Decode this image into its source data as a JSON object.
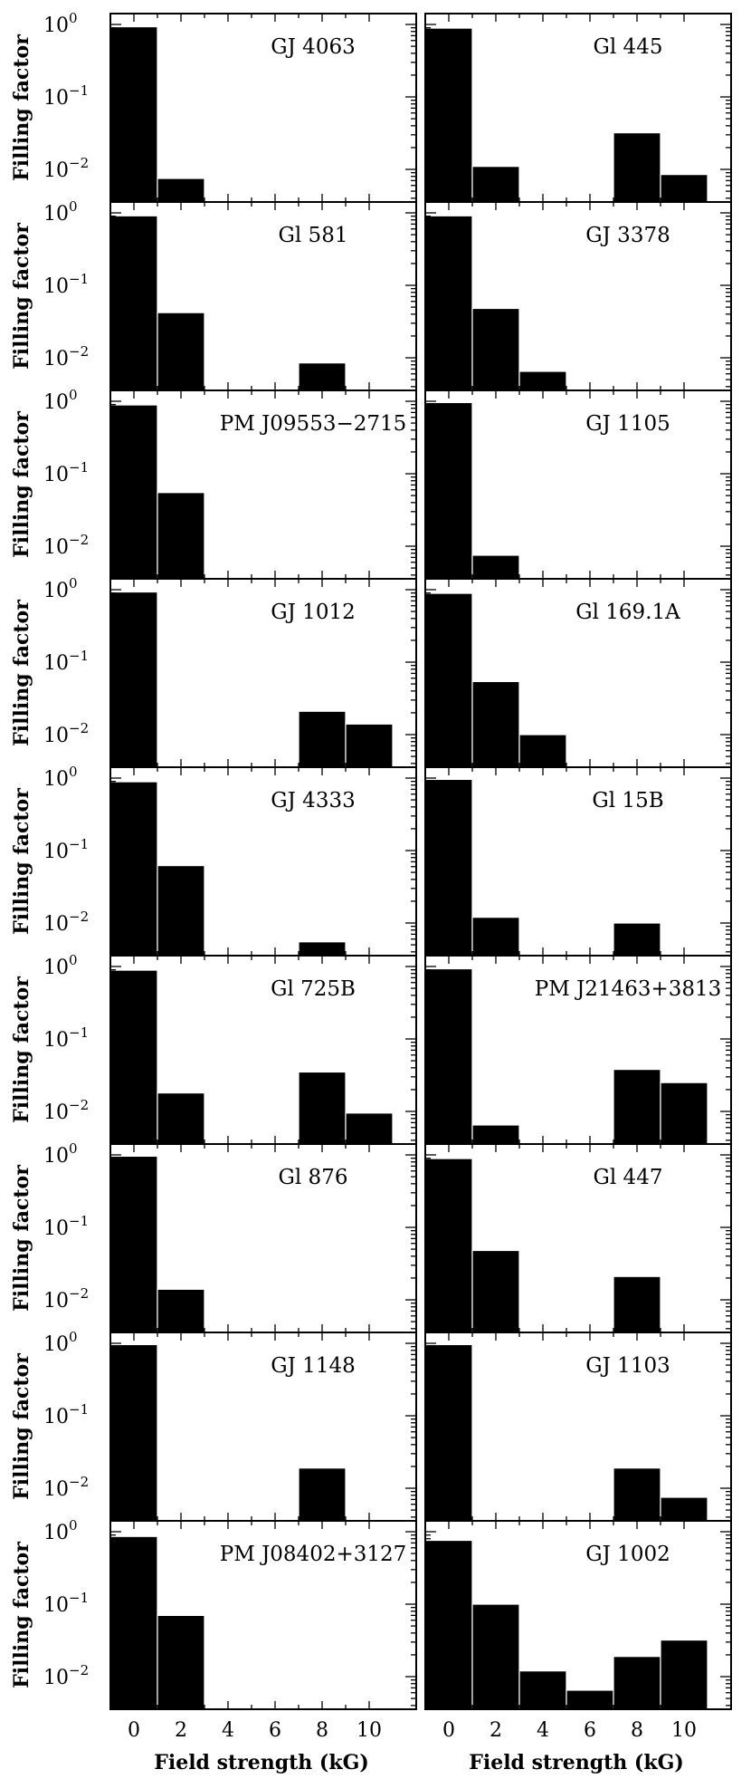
{
  "figure": {
    "ylabel": "Filling factor",
    "xlabel": "Field strength (kG)"
  },
  "chart_data": {
    "type": "bar",
    "layout": "grid of 9 rows x 2 columns of histograms",
    "x_tick_labels": [
      "0",
      "2",
      "4",
      "6",
      "8",
      "10"
    ],
    "y_tick_labels": [
      {
        "base": "10",
        "exp": "0"
      },
      {
        "base": "10",
        "exp": "−1"
      },
      {
        "base": "10",
        "exp": "−2"
      }
    ],
    "ylog": true,
    "bin_centers": [
      0,
      2,
      4,
      6,
      8,
      10
    ],
    "panels": [
      {
        "name": "GJ 4063",
        "values": [
          0.93,
          0.0075,
          null,
          null,
          null,
          null
        ]
      },
      {
        "name": "Gl 445",
        "values": [
          0.89,
          0.011,
          null,
          null,
          0.032,
          0.0085
        ]
      },
      {
        "name": "Gl 581",
        "values": [
          0.91,
          0.042,
          null,
          null,
          0.0085,
          null
        ]
      },
      {
        "name": "GJ 3378",
        "values": [
          0.91,
          0.048,
          0.0065,
          null,
          null,
          null
        ]
      },
      {
        "name": "PM J09553−2715",
        "values": [
          0.89,
          0.055,
          null,
          null,
          null,
          null
        ]
      },
      {
        "name": "GJ 1105",
        "values": [
          0.96,
          0.0075,
          null,
          null,
          null,
          null
        ]
      },
      {
        "name": "GJ 1012",
        "values": [
          0.93,
          null,
          null,
          null,
          0.021,
          0.014
        ]
      },
      {
        "name": "Gl 169.1A",
        "values": [
          0.89,
          0.054,
          0.01,
          null,
          null,
          null
        ]
      },
      {
        "name": "GJ 4333",
        "values": [
          0.89,
          0.062,
          null,
          null,
          0.0055,
          null
        ]
      },
      {
        "name": "Gl 15B",
        "values": [
          0.96,
          0.012,
          null,
          null,
          0.01,
          null
        ]
      },
      {
        "name": "Gl 725B",
        "values": [
          0.89,
          0.018,
          null,
          null,
          0.035,
          0.0095
        ]
      },
      {
        "name": "PM J21463+3813",
        "values": [
          0.93,
          0.0065,
          null,
          null,
          0.038,
          0.025
        ]
      },
      {
        "name": "Gl 876",
        "values": [
          0.96,
          0.014,
          null,
          null,
          null,
          null
        ]
      },
      {
        "name": "Gl 447",
        "values": [
          0.89,
          0.048,
          null,
          null,
          0.021,
          null
        ]
      },
      {
        "name": "GJ 1148",
        "values": [
          0.96,
          null,
          null,
          null,
          0.019,
          null
        ]
      },
      {
        "name": "GJ 1103",
        "values": [
          0.96,
          null,
          null,
          null,
          0.019,
          0.0075
        ]
      },
      {
        "name": "PM J08402+3127",
        "values": [
          0.86,
          0.07,
          null,
          null,
          null,
          null
        ]
      },
      {
        "name": "GJ 1002",
        "values": [
          0.76,
          0.1,
          0.012,
          0.0065,
          0.019,
          0.032
        ]
      }
    ]
  }
}
